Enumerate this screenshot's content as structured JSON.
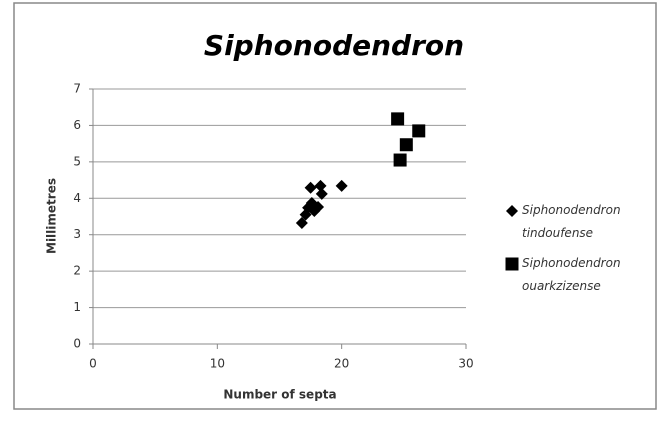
{
  "chart_data": {
    "type": "scatter",
    "title": "Siphonodendron",
    "x_label": "Number of septa",
    "y_label": "Millimetres",
    "xlim": [
      0,
      30
    ],
    "xticks": [
      0,
      10,
      20,
      30
    ],
    "ylim": [
      0,
      7
    ],
    "yticks": [
      0,
      1,
      2,
      3,
      4,
      5,
      6,
      7
    ],
    "grid": true,
    "legend": "right",
    "series": [
      {
        "name": "Siphonodendron tindoufense",
        "color": "#000000",
        "marker": "diamond",
        "x": [
          16.8,
          17.1,
          17.3,
          17.6,
          17.8,
          18.1,
          17.5,
          18.3,
          18.4,
          20.0
        ],
        "values": [
          3.32,
          3.55,
          3.74,
          3.87,
          3.65,
          3.76,
          4.29,
          4.34,
          4.12,
          4.34
        ]
      },
      {
        "name": "Siphonodendron ouarkzizense",
        "color": "#000000",
        "marker": "square",
        "x": [
          24.5,
          25.2,
          26.2,
          24.7
        ],
        "values": [
          6.18,
          5.47,
          5.85,
          5.05
        ]
      }
    ]
  }
}
